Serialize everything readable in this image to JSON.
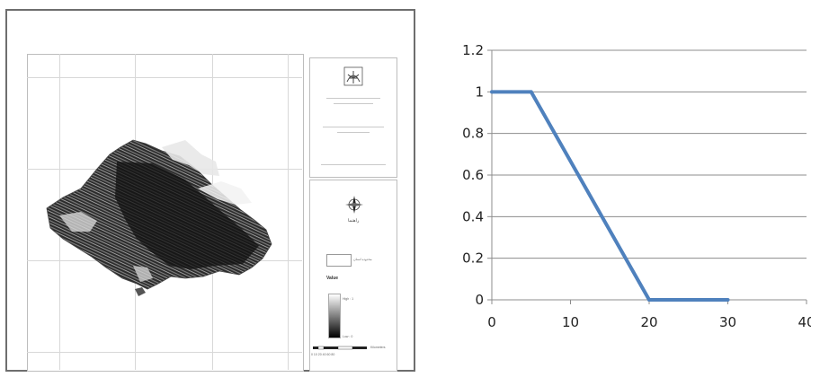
{
  "map": {
    "north_label": "راهنما",
    "legend_item_label": "محدوده استان",
    "value_heading": "Value",
    "high_label": "High : 1",
    "low_label": "Low : 0",
    "scale_unit": "Kilometers",
    "scale_ticks": "0 10 20    40    60    80"
  },
  "chart_data": {
    "type": "line",
    "x": [
      0,
      5,
      20,
      30
    ],
    "series": [
      {
        "values": [
          1,
          1,
          0,
          0
        ],
        "color": "#4f81bd"
      }
    ],
    "xlim": [
      0,
      40
    ],
    "ylim": [
      0,
      1.2
    ],
    "xticks": [
      "0",
      "10",
      "20",
      "30",
      "40"
    ],
    "yticks": [
      "0",
      "0.2",
      "0.4",
      "0.6",
      "0.8",
      "1",
      "1.2"
    ],
    "title": "",
    "xlabel": "",
    "ylabel": "",
    "grid": "horizontal"
  }
}
